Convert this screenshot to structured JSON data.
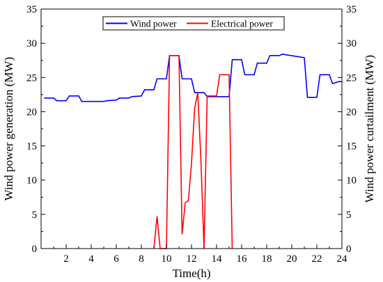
{
  "chart_data": {
    "type": "line",
    "xlabel": "Time(h)",
    "ylabel_left": "Wind power generation (MW)",
    "ylabel_right": "Wind power curtailment (MW)",
    "xlim": [
      0,
      24
    ],
    "ylim": [
      0,
      35
    ],
    "xticks": [
      2,
      4,
      6,
      8,
      10,
      12,
      14,
      16,
      18,
      20,
      22,
      24
    ],
    "yticks": [
      0,
      5,
      10,
      15,
      20,
      25,
      30,
      35
    ],
    "legend_position": "top-center",
    "grid": false,
    "series": [
      {
        "name": "Wind power",
        "color": "#0000ff",
        "axis": "left",
        "x": [
          0.25,
          1.0,
          1.25,
          2.0,
          2.25,
          3.0,
          3.25,
          4.0,
          5.0,
          5.25,
          6.0,
          6.25,
          7.0,
          7.25,
          8.0,
          8.25,
          9.0,
          9.25,
          10.0,
          10.25,
          11.0,
          11.25,
          12.0,
          12.25,
          13.0,
          13.25,
          15.0,
          15.25,
          16.0,
          16.25,
          17.0,
          17.25,
          18.0,
          18.25,
          19.0,
          19.25,
          21.0,
          21.25,
          22.0,
          22.25,
          23.0,
          23.25,
          23.75,
          24.0
        ],
        "y": [
          22.0,
          22.0,
          21.6,
          21.6,
          22.3,
          22.3,
          21.5,
          21.5,
          21.5,
          21.6,
          21.7,
          22.0,
          22.0,
          22.2,
          22.3,
          23.2,
          23.2,
          24.8,
          24.8,
          28.2,
          28.2,
          24.8,
          24.8,
          22.8,
          22.8,
          22.2,
          22.2,
          27.6,
          27.6,
          25.4,
          25.4,
          27.1,
          27.1,
          28.2,
          28.2,
          28.4,
          27.9,
          22.1,
          22.1,
          25.4,
          25.4,
          24.1,
          24.4,
          24.4
        ]
      },
      {
        "name": "Electrical power",
        "color": "#ff0000",
        "axis": "right",
        "x": [
          9.0,
          9.25,
          9.5,
          10.0,
          10.25,
          10.5,
          11.0,
          11.25,
          11.5,
          11.75,
          12.0,
          12.25,
          12.5,
          12.75,
          13.0,
          13.25,
          13.5,
          14.0,
          14.25,
          15.0,
          15.25
        ],
        "y": [
          0,
          4.7,
          0,
          0,
          28.2,
          28.2,
          28.2,
          2.1,
          6.7,
          7.0,
          12.5,
          20.5,
          22.8,
          13.0,
          0,
          22.3,
          22.3,
          22.3,
          25.4,
          25.4,
          0
        ]
      }
    ]
  }
}
